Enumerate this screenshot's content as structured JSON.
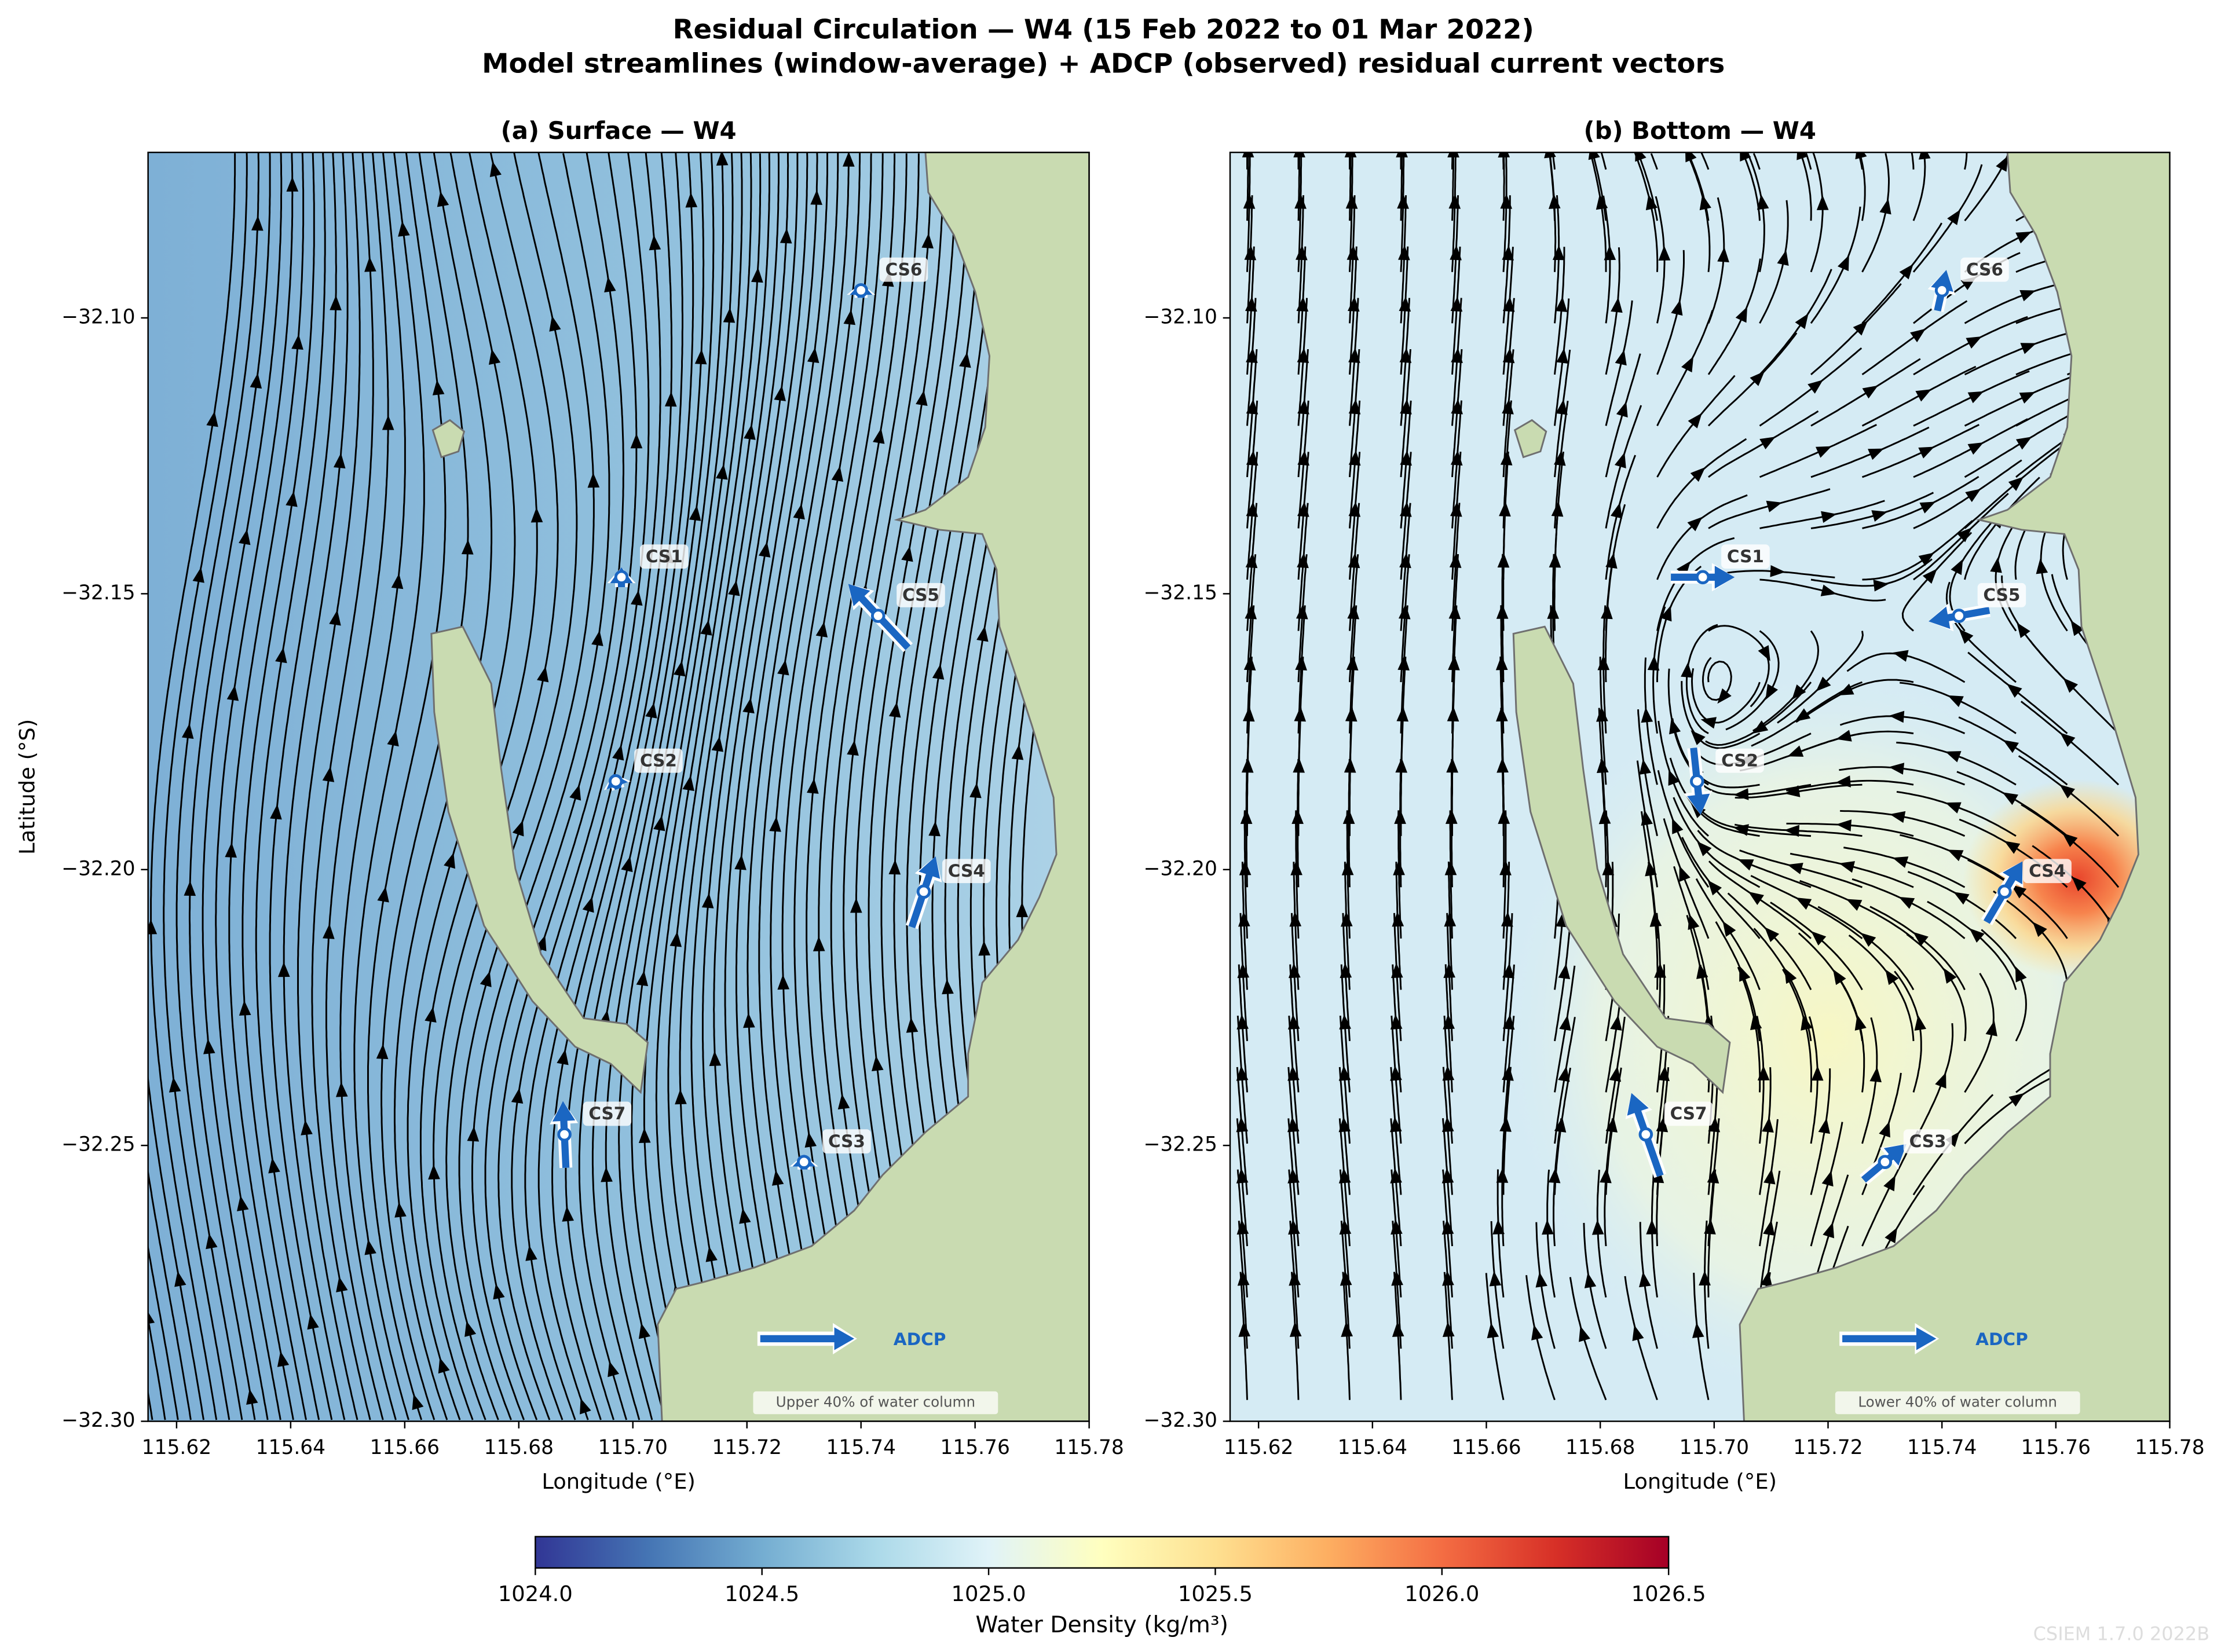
{
  "title": "Residual Circulation — W4  (15 Feb 2022 to 01 Mar 2022)",
  "subtitle": "Model streamlines (window-average) + ADCP (observed) residual current vectors",
  "chart_data": [
    {
      "type": "quiver",
      "title": "(a) Surface — W4",
      "xlabel": "Longitude (°E)",
      "ylabel": "Latitude (°S)",
      "annotation": "Upper 40% of water column",
      "key_label": "ADCP",
      "xlim": [
        115.615,
        115.78
      ],
      "ylim": [
        -32.3,
        -32.07
      ],
      "xticks": [
        115.62,
        115.64,
        115.66,
        115.68,
        {
          "value": 115.7,
          "label": "115.70"
        },
        115.72,
        115.74,
        115.76,
        115.78
      ],
      "yticks": [
        {
          "value": -32.3,
          "label": "−32.30"
        },
        {
          "value": -32.25,
          "label": "−32.25"
        },
        {
          "value": -32.2,
          "label": "−32.20"
        },
        {
          "value": -32.15,
          "label": "−32.15"
        },
        {
          "value": -32.1,
          "label": "−32.10"
        }
      ],
      "vector_color": "#1a66c2",
      "stations": [
        {
          "name": "CS1",
          "lon": 115.698,
          "lat": -32.147,
          "u": 0.0,
          "v": 0.02
        },
        {
          "name": "CS2",
          "lon": 115.697,
          "lat": -32.184,
          "u": -0.005,
          "v": 0.015
        },
        {
          "name": "CS3",
          "lon": 115.73,
          "lat": -32.253,
          "u": 0.0,
          "v": 0.015
        },
        {
          "name": "CS4",
          "lon": 115.751,
          "lat": -32.204,
          "u": 0.024,
          "v": 0.071
        },
        {
          "name": "CS5",
          "lon": 115.743,
          "lat": -32.154,
          "u": -0.06,
          "v": 0.064
        },
        {
          "name": "CS6",
          "lon": 115.74,
          "lat": -32.095,
          "u": 0.0,
          "v": 0.015
        },
        {
          "name": "CS7",
          "lon": 115.688,
          "lat": -32.248,
          "u": -0.003,
          "v": 0.067
        }
      ]
    },
    {
      "type": "quiver",
      "title": "(b) Bottom — W4",
      "xlabel": "Longitude (°E)",
      "annotation": "Lower 40% of water column",
      "key_label": "ADCP",
      "xlim": [
        115.615,
        115.78
      ],
      "ylim": [
        -32.3,
        -32.07
      ],
      "xticks": [
        115.62,
        115.64,
        115.66,
        115.68,
        {
          "value": 115.7,
          "label": "115.70"
        },
        115.72,
        115.74,
        115.76,
        115.78
      ],
      "yticks": [
        {
          "value": -32.3,
          "label": "−32.30"
        },
        {
          "value": -32.25,
          "label": "−32.25"
        },
        {
          "value": -32.2,
          "label": "−32.20"
        },
        {
          "value": -32.15,
          "label": "−32.15"
        },
        {
          "value": -32.1,
          "label": "−32.10"
        }
      ],
      "vector_color": "#1a66c2",
      "stations": [
        {
          "name": "CS1",
          "lon": 115.698,
          "lat": -32.147,
          "u": 0.064,
          "v": 0.0
        },
        {
          "name": "CS2",
          "lon": 115.697,
          "lat": -32.184,
          "u": 0.007,
          "v": -0.067
        },
        {
          "name": "CS3",
          "lon": 115.73,
          "lat": -32.253,
          "u": 0.043,
          "v": 0.036
        },
        {
          "name": "CS4",
          "lon": 115.751,
          "lat": -32.204,
          "u": 0.036,
          "v": 0.061
        },
        {
          "name": "CS5",
          "lon": 115.743,
          "lat": -32.154,
          "u": -0.061,
          "v": -0.011
        },
        {
          "name": "CS6",
          "lon": 115.74,
          "lat": -32.095,
          "u": 0.009,
          "v": 0.041
        },
        {
          "name": "CS7",
          "lon": 115.688,
          "lat": -32.248,
          "u": -0.029,
          "v": 0.083
        }
      ]
    }
  ],
  "colorbar": {
    "label": "Water Density (kg/m³)",
    "lim": [
      1024,
      1026.5
    ],
    "ticks": [
      {
        "value": 1024,
        "label": "1024.0"
      },
      1024.5,
      {
        "value": 1025,
        "label": "1025.0"
      },
      1025.5,
      {
        "value": 1026,
        "label": "1026.0"
      },
      1026.5
    ],
    "colors": [
      "#313695",
      "#4575b4",
      "#74add1",
      "#abd9e9",
      "#e0f3f8",
      "#ffffbf",
      "#fee090",
      "#fdae61",
      "#f46d43",
      "#d73027",
      "#a50026"
    ]
  },
  "watermark": "CSIEM 1.7.0 2022B"
}
